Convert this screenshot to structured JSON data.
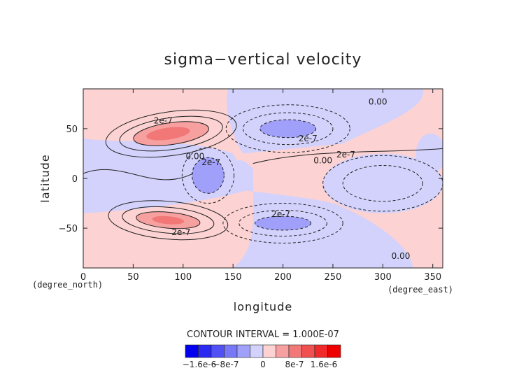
{
  "chart_data": {
    "type": "heatmap",
    "title": "sigma−vertical velocity",
    "xlabel": "longitude",
    "ylabel": "latitude",
    "x_units": "(degree_east)",
    "y_units": "(degree_north)",
    "xlim": [
      0,
      360
    ],
    "ylim": [
      -90,
      90
    ],
    "x_ticks": [
      0,
      50,
      100,
      150,
      200,
      250,
      300,
      350
    ],
    "y_ticks": [
      -50,
      0,
      50
    ],
    "contour_interval_label": "CONTOUR INTERVAL = 1.000E-07",
    "contour_interval": 1e-07,
    "contour_labels": [
      {
        "text": "0.00",
        "x": 295,
        "y": 77
      },
      {
        "text": "2e-7",
        "x": 80,
        "y": 58
      },
      {
        "text": "2e-7",
        "x": 225,
        "y": 40
      },
      {
        "text": "0.00",
        "x": 112,
        "y": 22
      },
      {
        "text": "2e-7",
        "x": 128,
        "y": 16
      },
      {
        "text": "2e-7",
        "x": 263,
        "y": 24
      },
      {
        "text": "0.00",
        "x": 240,
        "y": 18
      },
      {
        "text": "2e-7",
        "x": 198,
        "y": -36
      },
      {
        "text": "2e-7",
        "x": 98,
        "y": -54
      },
      {
        "text": "0.00",
        "x": 318,
        "y": -78
      }
    ],
    "colorbar": {
      "colors": [
        "#0000ee",
        "#2a2af2",
        "#5050f5",
        "#7878f7",
        "#a0a0fa",
        "#d2d2fc",
        "#fcd2d2",
        "#f7a0a0",
        "#f27878",
        "#f05050",
        "#f02a2a",
        "#ee0000"
      ],
      "tick_labels": [
        "−1.6e-6",
        "−8e-7",
        "0",
        "8e-7",
        "1.6e-6"
      ]
    }
  }
}
